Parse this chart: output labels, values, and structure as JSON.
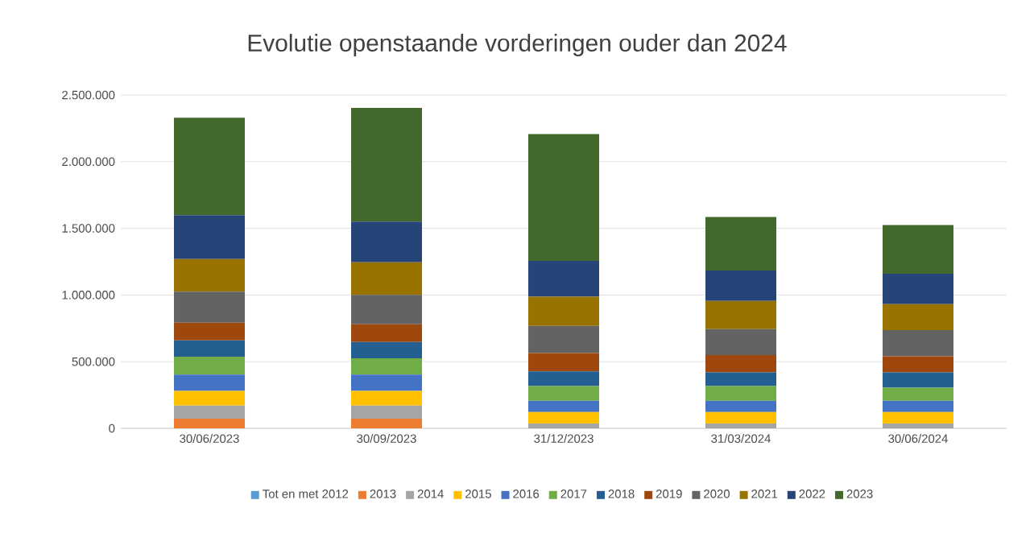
{
  "chart_data": {
    "type": "bar",
    "title": "Evolutie openstaande vorderingen ouder dan 2024",
    "categories": [
      "30/06/2023",
      "30/09/2023",
      "31/12/2023",
      "31/03/2024",
      "30/06/2024"
    ],
    "stacked": true,
    "series": [
      {
        "name": "Tot en met 2012",
        "color": "#5b9bd5",
        "values": [
          0,
          0,
          0,
          0,
          0
        ]
      },
      {
        "name": "2013",
        "color": "#ed7d31",
        "values": [
          73000,
          73000,
          0,
          0,
          0
        ]
      },
      {
        "name": "2014",
        "color": "#a5a5a5",
        "values": [
          98000,
          98000,
          37000,
          37000,
          37000
        ]
      },
      {
        "name": "2015",
        "color": "#ffc000",
        "values": [
          110000,
          110000,
          85000,
          85000,
          85000
        ]
      },
      {
        "name": "2016",
        "color": "#4472c4",
        "values": [
          122000,
          122000,
          85000,
          85000,
          85000
        ]
      },
      {
        "name": "2017",
        "color": "#70ad47",
        "values": [
          134000,
          122000,
          110000,
          110000,
          98000
        ]
      },
      {
        "name": "2018",
        "color": "#255e91",
        "values": [
          122000,
          122000,
          110000,
          102000,
          114000
        ]
      },
      {
        "name": "2019",
        "color": "#9e480e",
        "values": [
          134000,
          134000,
          138000,
          130000,
          122000
        ]
      },
      {
        "name": "2020",
        "color": "#636363",
        "values": [
          232000,
          220000,
          203000,
          195000,
          195000
        ]
      },
      {
        "name": "2021",
        "color": "#997300",
        "values": [
          244000,
          244000,
          220000,
          211000,
          195000
        ]
      },
      {
        "name": "2022",
        "color": "#264478",
        "values": [
          329000,
          305000,
          268000,
          228000,
          228000
        ]
      },
      {
        "name": "2023",
        "color": "#43682b",
        "values": [
          732000,
          854000,
          951000,
          402000,
          366000
        ]
      }
    ],
    "ylim": [
      0,
      2500000
    ],
    "yticks": [
      {
        "value": 0,
        "label": "0"
      },
      {
        "value": 500000,
        "label": "500.000"
      },
      {
        "value": 1000000,
        "label": "1.000.000"
      },
      {
        "value": 1500000,
        "label": "1.500.000"
      },
      {
        "value": 2000000,
        "label": "2.000.000"
      },
      {
        "value": 2500000,
        "label": "2.500.000"
      }
    ],
    "grid": "y",
    "legend": "bottom"
  }
}
